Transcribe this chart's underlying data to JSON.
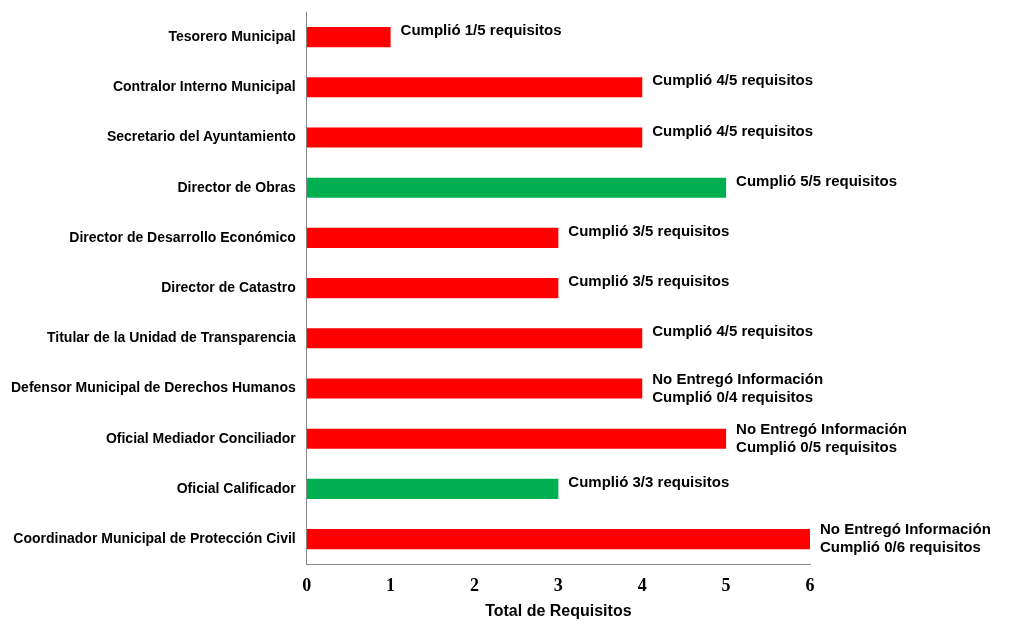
{
  "chart_data": {
    "type": "bar",
    "orientation": "horizontal",
    "xlabel": "Total de Requisitos",
    "categories": [
      "Tesorero Municipal",
      "Contralor Interno Municipal",
      "Secretario del Ayuntamiento",
      "Director de Obras",
      "Director de Desarrollo Económico",
      "Director de Catastro",
      "Titular de la Unidad de Transparencia",
      "Defensor Municipal de Derechos Humanos",
      "Oficial Mediador Conciliador",
      "Oficial Calificador",
      "Coordinador Municipal de Protección Civil"
    ],
    "values": [
      1,
      4,
      4,
      5,
      3,
      3,
      4,
      4,
      5,
      3,
      6
    ],
    "colors": [
      "#ff0000",
      "#ff0000",
      "#ff0000",
      "#00b050",
      "#ff0000",
      "#ff0000",
      "#ff0000",
      "#ff0000",
      "#ff0000",
      "#00b050",
      "#ff0000"
    ],
    "value_labels": [
      "Cumplió 1/5 requisitos",
      "Cumplió 4/5 requisitos",
      "Cumplió 4/5 requisitos",
      "Cumplió 5/5 requisitos",
      "Cumplió 3/5 requisitos",
      "Cumplió 3/5 requisitos",
      "Cumplió 4/5 requisitos",
      "No Entregó Información\nCumplió 0/4 requisitos",
      "No Entregó Información\nCumplió 0/5 requisitos",
      "Cumplió 3/3 requisitos",
      "No Entregó Información\nCumplió 0/6 requisitos"
    ],
    "xlim": [
      0,
      6
    ],
    "xticks": [
      0,
      1,
      2,
      3,
      4,
      5,
      6
    ],
    "grid": false,
    "legend": false
  }
}
